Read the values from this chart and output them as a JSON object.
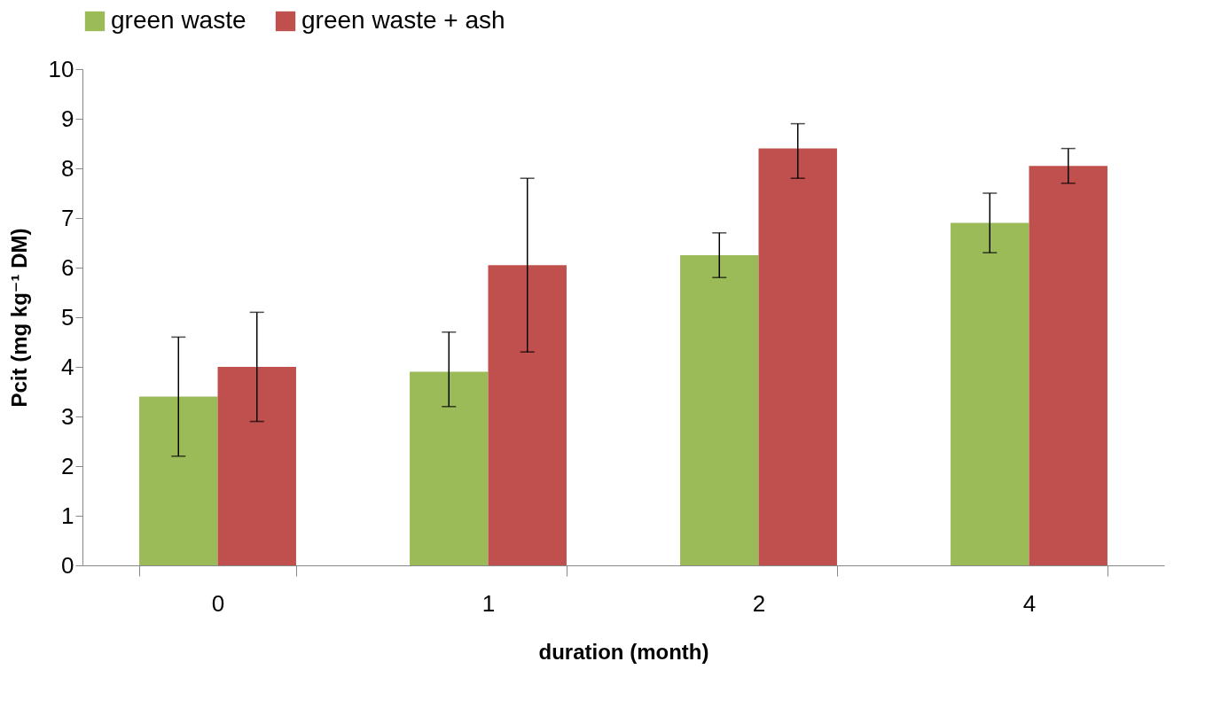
{
  "chart_data": {
    "type": "bar",
    "xlabel": "duration (month)",
    "ylabel": "Pcit (mg kg⁻¹ DM)",
    "categories": [
      "0",
      "1",
      "2",
      "4"
    ],
    "series": [
      {
        "name": "green waste",
        "color": "#9bbb59",
        "values": [
          3.4,
          3.9,
          6.25,
          6.9
        ],
        "errors": [
          [
            2.2,
            4.6
          ],
          [
            3.2,
            4.7
          ],
          [
            5.8,
            6.7
          ],
          [
            6.3,
            7.5
          ]
        ]
      },
      {
        "name": "green waste + ash",
        "color": "#c0504d",
        "values": [
          4.0,
          6.05,
          8.4,
          8.05
        ],
        "errors": [
          [
            2.9,
            5.1
          ],
          [
            4.3,
            7.8
          ],
          [
            7.8,
            8.9
          ],
          [
            7.7,
            8.4
          ]
        ]
      }
    ],
    "ylim": [
      0,
      10
    ],
    "yticks": [
      0,
      1,
      2,
      3,
      4,
      5,
      6,
      7,
      8,
      9,
      10
    ],
    "grid": false,
    "legend": "top"
  }
}
